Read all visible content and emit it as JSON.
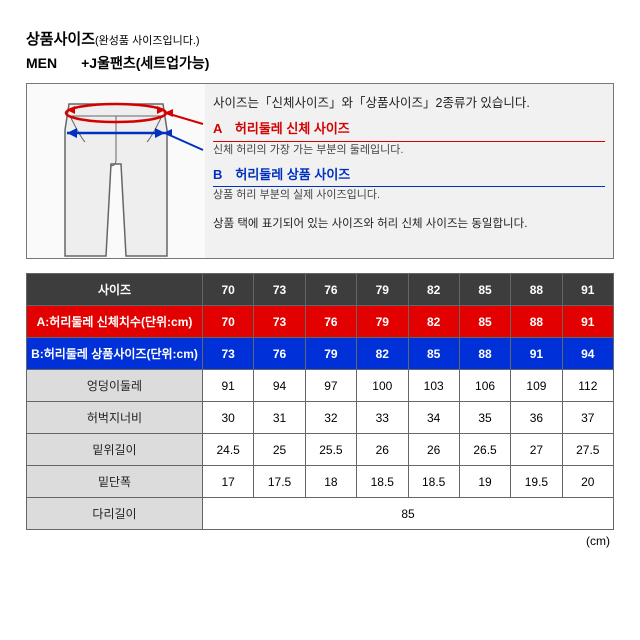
{
  "header": {
    "title": "상품사이즈",
    "title_note": "(완성품 사이즈입니다.)",
    "gender": "MEN",
    "product": "+J울팬츠(세트업가능)"
  },
  "info": {
    "top_text": "사이즈는「신체사이즈」와「상품사이즈」2종류가 있습니다.",
    "a_label": "A　허리둘레 신체 사이즈",
    "a_sub": "신체 허리의 가장 가는 부분의 둘레입니다.",
    "b_label": "B　허리둘레 상품 사이즈",
    "b_sub": "상품 허리 부분의 실제 사이즈입니다.",
    "bottom": "상품 택에 표기되어 있는 사이즈와 허리 신체 사이즈는 동일합니다."
  },
  "table": {
    "size_header": "사이즈",
    "sizes": [
      "70",
      "73",
      "76",
      "79",
      "82",
      "85",
      "88",
      "91"
    ],
    "rows": [
      {
        "cls": "row-red",
        "label": "A:허리둘레 신체치수(단위:cm)",
        "vals": [
          "70",
          "73",
          "76",
          "79",
          "82",
          "85",
          "88",
          "91"
        ]
      },
      {
        "cls": "row-blue",
        "label": "B:허리둘레 상품사이즈(단위:cm)",
        "vals": [
          "73",
          "76",
          "79",
          "82",
          "85",
          "88",
          "91",
          "94"
        ]
      },
      {
        "cls": "row-gray",
        "label": "엉덩이둘레",
        "vals": [
          "91",
          "94",
          "97",
          "100",
          "103",
          "106",
          "109",
          "112"
        ]
      },
      {
        "cls": "row-gray",
        "label": "허벅지너비",
        "vals": [
          "30",
          "31",
          "32",
          "33",
          "34",
          "35",
          "36",
          "37"
        ]
      },
      {
        "cls": "row-gray",
        "label": "밑위길이",
        "vals": [
          "24.5",
          "25",
          "25.5",
          "26",
          "26",
          "26.5",
          "27",
          "27.5"
        ]
      },
      {
        "cls": "row-gray",
        "label": "밑단폭",
        "vals": [
          "17",
          "17.5",
          "18",
          "18.5",
          "18.5",
          "19",
          "19.5",
          "20"
        ]
      },
      {
        "cls": "row-gray",
        "label": "다리길이",
        "colspan": 8,
        "val": "85"
      }
    ],
    "unit": "(cm)"
  },
  "colors": {
    "red": "#e20000",
    "blue": "#0030d8",
    "header_bg": "#3d3d3d",
    "gray_bg": "#dcdcdc"
  }
}
